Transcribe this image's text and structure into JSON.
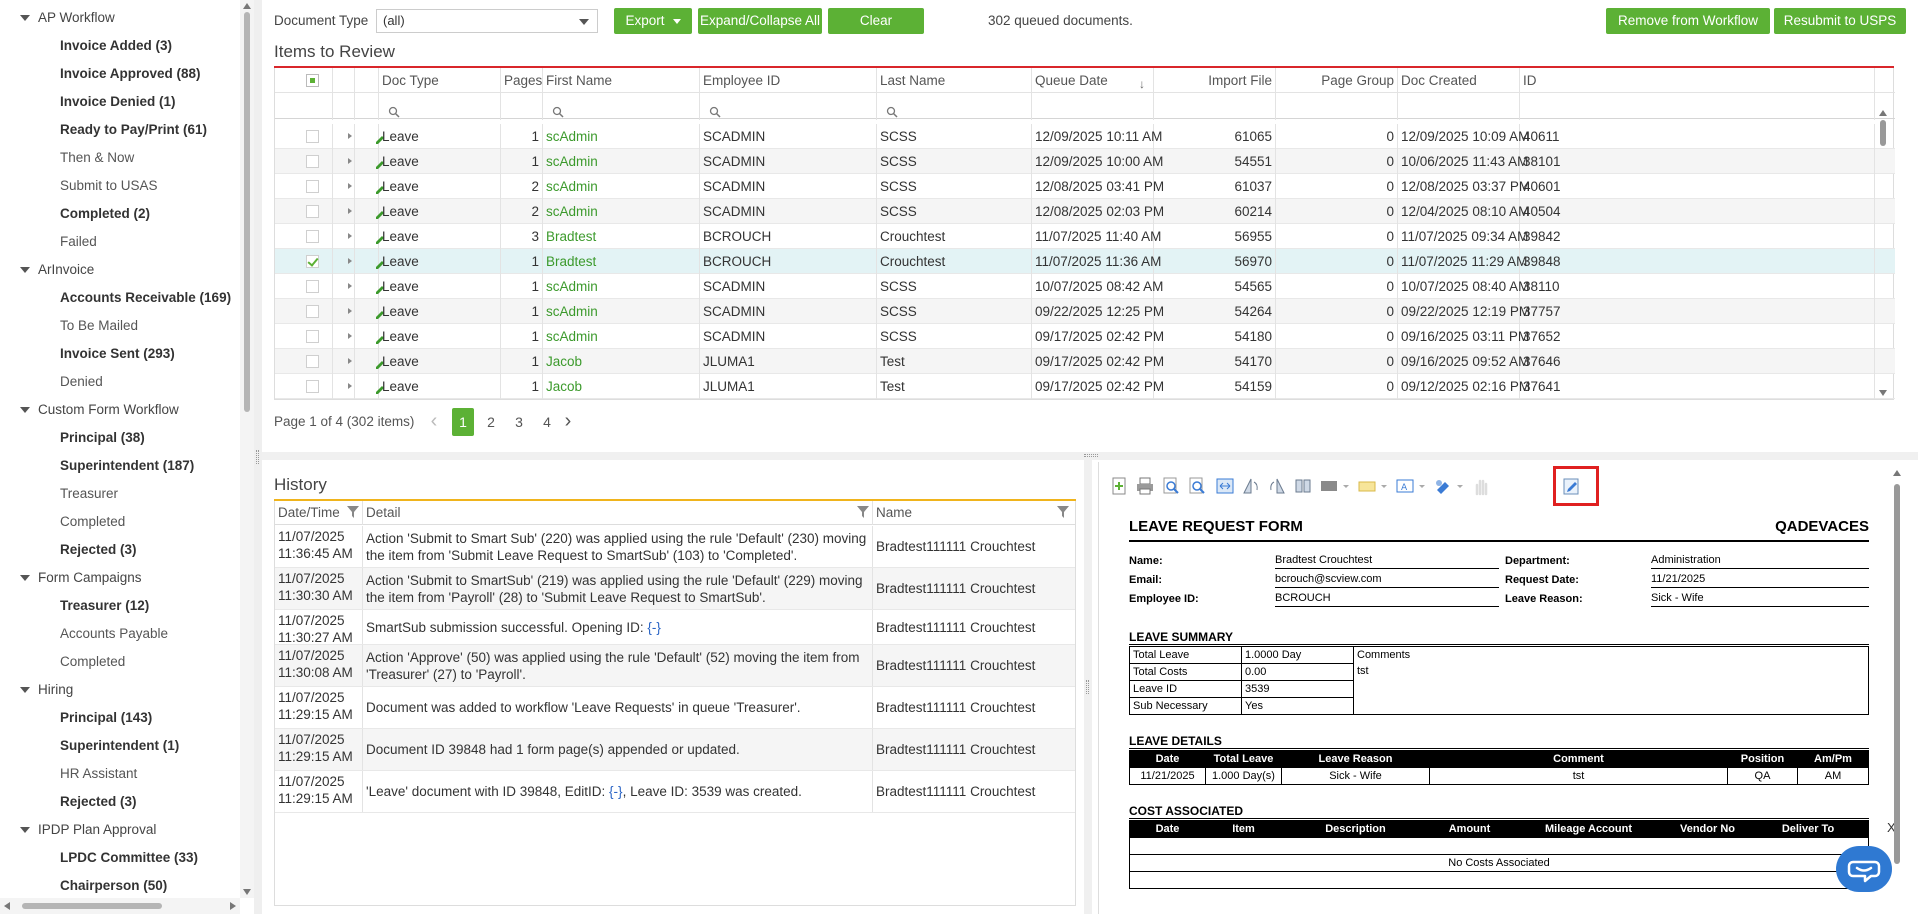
{
  "sidebar": {
    "groups": [
      {
        "label": "AP Workflow",
        "items": [
          {
            "label": "Invoice Added (3)",
            "bold": true
          },
          {
            "label": "Invoice Approved (88)",
            "bold": true
          },
          {
            "label": "Invoice Denied (1)",
            "bold": true
          },
          {
            "label": "Ready to Pay/Print (61)",
            "bold": true
          },
          {
            "label": "Then & Now",
            "bold": false
          },
          {
            "label": "Submit to USAS",
            "bold": false
          },
          {
            "label": "Completed (2)",
            "bold": true
          },
          {
            "label": "Failed",
            "bold": false
          }
        ]
      },
      {
        "label": "ArInvoice",
        "items": [
          {
            "label": "Accounts Receivable (169)",
            "bold": true
          },
          {
            "label": "To Be Mailed",
            "bold": false
          },
          {
            "label": "Invoice Sent (293)",
            "bold": true
          },
          {
            "label": "Denied",
            "bold": false
          }
        ]
      },
      {
        "label": "Custom Form Workflow",
        "items": [
          {
            "label": "Principal (38)",
            "bold": true
          },
          {
            "label": "Superintendent (187)",
            "bold": true
          },
          {
            "label": "Treasurer",
            "bold": false
          },
          {
            "label": "Completed",
            "bold": false
          },
          {
            "label": "Rejected (3)",
            "bold": true
          }
        ]
      },
      {
        "label": "Form Campaigns",
        "items": [
          {
            "label": "Treasurer (12)",
            "bold": true
          },
          {
            "label": "Accounts Payable",
            "bold": false
          },
          {
            "label": "Completed",
            "bold": false
          }
        ]
      },
      {
        "label": "Hiring",
        "items": [
          {
            "label": "Principal (143)",
            "bold": true
          },
          {
            "label": "Superintendent (1)",
            "bold": true
          },
          {
            "label": "HR Assistant",
            "bold": false
          },
          {
            "label": "Rejected (3)",
            "bold": true
          }
        ]
      },
      {
        "label": "IPDP Plan Approval",
        "items": [
          {
            "label": "LPDC Committee (33)",
            "bold": true
          },
          {
            "label": "Chairperson (50)",
            "bold": true
          }
        ]
      }
    ]
  },
  "toolbar": {
    "doc_type_label": "Document Type",
    "doc_type_value": "(all)",
    "export_label": "Export",
    "expand_label": "Expand/Collapse All",
    "clear_label": "Clear",
    "queued_text": "302 queued documents.",
    "remove_label": "Remove from Workflow",
    "resubmit_label": "Resubmit to USPS"
  },
  "items": {
    "title": "Items to Review",
    "columns": [
      "Doc Type",
      "Pages",
      "First Name",
      "Employee ID",
      "Last Name",
      "Queue Date",
      "Import File",
      "Page Group",
      "Doc Created",
      "ID"
    ],
    "rows": [
      {
        "doc_type": "Leave",
        "pages": "1",
        "first": "scAdmin",
        "emp": "SCADMIN",
        "last": "SCSS",
        "queue": "12/09/2025 10:11 AM",
        "import": "61065",
        "group": "0",
        "created": "12/09/2025 10:09 AM",
        "id": "40611",
        "checked": false
      },
      {
        "doc_type": "Leave",
        "pages": "1",
        "first": "scAdmin",
        "emp": "SCADMIN",
        "last": "SCSS",
        "queue": "12/09/2025 10:00 AM",
        "import": "54551",
        "group": "0",
        "created": "10/06/2025 11:43 AM",
        "id": "38101",
        "checked": false
      },
      {
        "doc_type": "Leave",
        "pages": "2",
        "first": "scAdmin",
        "emp": "SCADMIN",
        "last": "SCSS",
        "queue": "12/08/2025 03:41 PM",
        "import": "61037",
        "group": "0",
        "created": "12/08/2025 03:37 PM",
        "id": "40601",
        "checked": false
      },
      {
        "doc_type": "Leave",
        "pages": "2",
        "first": "scAdmin",
        "emp": "SCADMIN",
        "last": "SCSS",
        "queue": "12/08/2025 02:03 PM",
        "import": "60214",
        "group": "0",
        "created": "12/04/2025 08:10 AM",
        "id": "40504",
        "checked": false
      },
      {
        "doc_type": "Leave",
        "pages": "3",
        "first": "Bradtest",
        "emp": "BCROUCH",
        "last": "Crouchtest",
        "queue": "11/07/2025 11:40 AM",
        "import": "56955",
        "group": "0",
        "created": "11/07/2025 09:34 AM",
        "id": "39842",
        "checked": false
      },
      {
        "doc_type": "Leave",
        "pages": "1",
        "first": "Bradtest",
        "emp": "BCROUCH",
        "last": "Crouchtest",
        "queue": "11/07/2025 11:36 AM",
        "import": "56970",
        "group": "0",
        "created": "11/07/2025 11:29 AM",
        "id": "39848",
        "checked": true
      },
      {
        "doc_type": "Leave",
        "pages": "1",
        "first": "scAdmin",
        "emp": "SCADMIN",
        "last": "SCSS",
        "queue": "10/07/2025 08:42 AM",
        "import": "54565",
        "group": "0",
        "created": "10/07/2025 08:40 AM",
        "id": "38110",
        "checked": false
      },
      {
        "doc_type": "Leave",
        "pages": "1",
        "first": "scAdmin",
        "emp": "SCADMIN",
        "last": "SCSS",
        "queue": "09/22/2025 12:25 PM",
        "import": "54264",
        "group": "0",
        "created": "09/22/2025 12:19 PM",
        "id": "37757",
        "checked": false
      },
      {
        "doc_type": "Leave",
        "pages": "1",
        "first": "scAdmin",
        "emp": "SCADMIN",
        "last": "SCSS",
        "queue": "09/17/2025 02:42 PM",
        "import": "54180",
        "group": "0",
        "created": "09/16/2025 03:11 PM",
        "id": "37652",
        "checked": false
      },
      {
        "doc_type": "Leave",
        "pages": "1",
        "first": "Jacob",
        "emp": "JLUMA1",
        "last": "Test",
        "queue": "09/17/2025 02:42 PM",
        "import": "54170",
        "group": "0",
        "created": "09/16/2025 09:52 AM",
        "id": "37646",
        "checked": false
      },
      {
        "doc_type": "Leave",
        "pages": "1",
        "first": "Jacob",
        "emp": "JLUMA1",
        "last": "Test",
        "queue": "09/17/2025 02:42 PM",
        "import": "54159",
        "group": "0",
        "created": "09/12/2025 02:16 PM",
        "id": "37641",
        "checked": false
      }
    ]
  },
  "pager": {
    "info": "Page 1 of 4 (302 items)",
    "pages": [
      "1",
      "2",
      "3",
      "4"
    ],
    "prev": "‹",
    "next": "›"
  },
  "history": {
    "title": "History",
    "columns": [
      "Date/Time",
      "Detail",
      "Name"
    ],
    "rows": [
      {
        "date": "11/07/2025",
        "time": "11:36:45 AM",
        "detail": "Action 'Submit to Smart Sub' (220) was applied using the rule 'Default' (230) moving the item from 'Submit Leave Request to SmartSub' (103) to 'Completed'.",
        "name": "Bradtest111111 Crouchtest"
      },
      {
        "date": "11/07/2025",
        "time": "11:30:30 AM",
        "detail": "Action 'Submit to SmartSub' (219) was applied using the rule 'Default' (229) moving the item from 'Payroll' (28) to 'Submit Leave Request to SmartSub'.",
        "name": "Bradtest111111 Crouchtest"
      },
      {
        "date": "11/07/2025",
        "time": "11:30:27 AM",
        "detail_pre": "SmartSub submission successful. Opening ID: ",
        "detail_link": "{-}",
        "detail_post": "",
        "name": "Bradtest111111 Crouchtest"
      },
      {
        "date": "11/07/2025",
        "time": "11:30:08 AM",
        "detail": "Action 'Approve' (50) was applied using the rule 'Default' (52) moving the item from 'Treasurer' (27) to 'Payroll'.",
        "name": "Bradtest111111 Crouchtest"
      },
      {
        "date": "11/07/2025",
        "time": "11:29:15 AM",
        "detail": "Document was added to workflow 'Leave Requests' in queue 'Treasurer'.",
        "name": "Bradtest111111 Crouchtest"
      },
      {
        "date": "11/07/2025",
        "time": "11:29:15 AM",
        "detail": "Document ID 39848 had 1 form page(s) appended or updated.",
        "name": "Bradtest111111 Crouchtest"
      },
      {
        "date": "11/07/2025",
        "time": "11:29:15 AM",
        "detail_pre": "'Leave' document with ID 39848, EditID: ",
        "detail_link": "{-}",
        "detail_post": ", Leave ID: 3539 was created.",
        "name": "Bradtest111111 Crouchtest"
      }
    ]
  },
  "form": {
    "title": "LEAVE REQUEST FORM",
    "company": "QADEVACES",
    "name_label": "Name:",
    "name": "Bradtest Crouchtest",
    "email_label": "Email:",
    "email": "bcrouch@scview.com",
    "empid_label": "Employee ID:",
    "empid": "BCROUCH",
    "dept_label": "Department:",
    "dept": "Administration",
    "reqdate_label": "Request Date:",
    "reqdate": "11/21/2025",
    "reason_label": "Leave Reason:",
    "reason": "Sick - Wife",
    "summary_title": "LEAVE SUMMARY",
    "summary": [
      {
        "k": "Total Leave",
        "v": "1.0000 Day"
      },
      {
        "k": "Total Costs",
        "v": "0.00"
      },
      {
        "k": "Leave ID",
        "v": "3539"
      },
      {
        "k": "Sub Necessary",
        "v": "Yes"
      }
    ],
    "comments_label": "Comments",
    "comments_value": "tst",
    "details_title": "LEAVE DETAILS",
    "details_cols": [
      "Date",
      "Total Leave",
      "Leave Reason",
      "Comment",
      "Position",
      "Am/Pm"
    ],
    "details_row": [
      "11/21/2025",
      "1.000 Day(s)",
      "Sick - Wife",
      "tst",
      "QA",
      "AM"
    ],
    "cost_title": "COST ASSOCIATED",
    "cost_cols": [
      "Date",
      "Item",
      "Description",
      "Amount",
      "Mileage Account",
      "Vendor No",
      "Deliver To"
    ],
    "no_costs": "No Costs Associated",
    "close_x": "X"
  }
}
